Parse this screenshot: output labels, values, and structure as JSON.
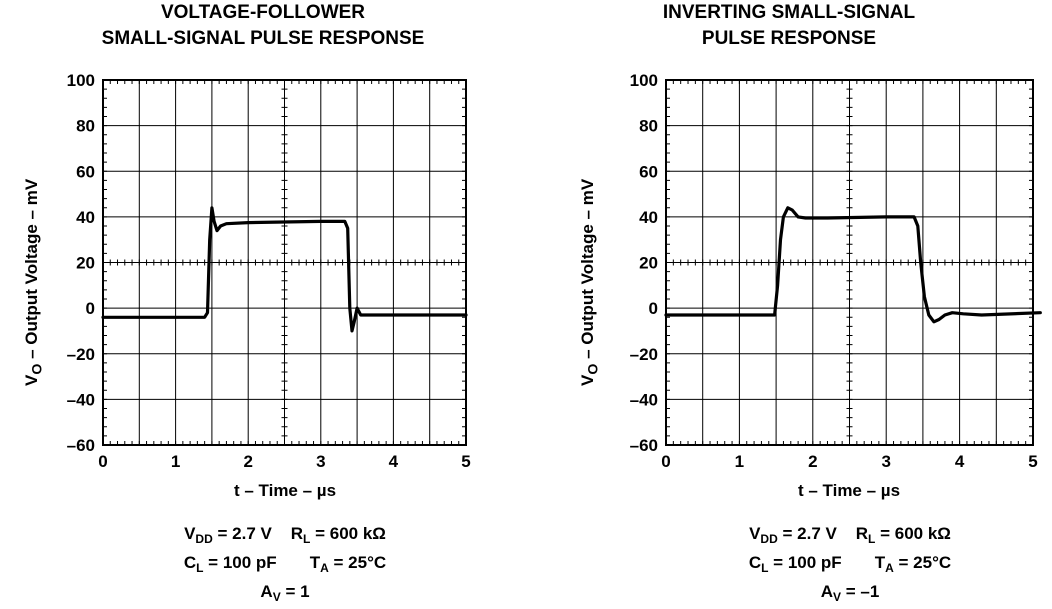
{
  "chart_data": [
    {
      "type": "line",
      "title_lines": [
        "VOLTAGE-FOLLOWER",
        "SMALL-SIGNAL PULSE RESPONSE"
      ],
      "xlabel": "t – Time – µs",
      "ylabel_main": "V",
      "ylabel_sub": "O",
      "ylabel_rest": " – Output Voltage – mV",
      "xlim": [
        0,
        5
      ],
      "ylim": [
        -60,
        100
      ],
      "xticks": [
        "0",
        "1",
        "2",
        "3",
        "4",
        "5"
      ],
      "yticks": [
        "100",
        "80",
        "60",
        "40",
        "20",
        "0",
        "–20",
        "–40",
        "–60"
      ],
      "grid": true,
      "conditions": {
        "vdd_main": "V",
        "vdd_sub": "DD",
        "vdd_rest": " = 2.7 V",
        "rl_main": "R",
        "rl_sub": "L",
        "rl_rest": " = 600 kΩ",
        "cl_main": "C",
        "cl_sub": "L",
        "cl_rest": " = 100 pF",
        "ta_main": "T",
        "ta_sub": "A",
        "ta_rest": " = 25°C",
        "av_main": "A",
        "av_sub": "V",
        "av_rest": " = 1"
      },
      "x": [
        0,
        1.0,
        1.4,
        1.44,
        1.47,
        1.5,
        1.53,
        1.57,
        1.62,
        1.7,
        2.0,
        3.0,
        3.33,
        3.37,
        3.4,
        3.43,
        3.46,
        3.5,
        3.55,
        3.65,
        4.0,
        5.0
      ],
      "y": [
        -4,
        -4,
        -4,
        -2,
        30,
        44,
        38,
        34,
        36,
        37,
        37.5,
        38,
        38,
        35,
        0,
        -10,
        -6,
        0,
        -3,
        -3,
        -3,
        -3
      ]
    },
    {
      "type": "line",
      "title_lines": [
        "INVERTING SMALL-SIGNAL",
        "PULSE RESPONSE"
      ],
      "xlabel": "t – Time – µs",
      "ylabel_main": "V",
      "ylabel_sub": "O",
      "ylabel_rest": " – Output Voltage – mV",
      "xlim": [
        0,
        5
      ],
      "ylim": [
        -60,
        100
      ],
      "xticks": [
        "0",
        "1",
        "2",
        "3",
        "4",
        "5"
      ],
      "yticks": [
        "100",
        "80",
        "60",
        "40",
        "20",
        "0",
        "–20",
        "–40",
        "–60"
      ],
      "grid": true,
      "conditions": {
        "vdd_main": "V",
        "vdd_sub": "DD",
        "vdd_rest": " = 2.7 V",
        "rl_main": "R",
        "rl_sub": "L",
        "rl_rest": " = 600 kΩ",
        "cl_main": "C",
        "cl_sub": "L",
        "cl_rest": " = 100 pF",
        "ta_main": "T",
        "ta_sub": "A",
        "ta_rest": " = 25°C",
        "av_main": "A",
        "av_sub": "V",
        "av_rest": " = –1"
      },
      "x": [
        0,
        1.0,
        1.48,
        1.52,
        1.56,
        1.6,
        1.66,
        1.72,
        1.8,
        1.9,
        2.2,
        3.0,
        3.38,
        3.43,
        3.47,
        3.52,
        3.58,
        3.65,
        3.72,
        3.8,
        3.9,
        4.05,
        4.3,
        5.1
      ],
      "y": [
        -3,
        -3,
        -3,
        10,
        30,
        40,
        44,
        43,
        40,
        39.5,
        39.5,
        40,
        40,
        36,
        20,
        5,
        -3,
        -6,
        -5,
        -3,
        -2,
        -2.5,
        -3,
        -2
      ]
    }
  ]
}
